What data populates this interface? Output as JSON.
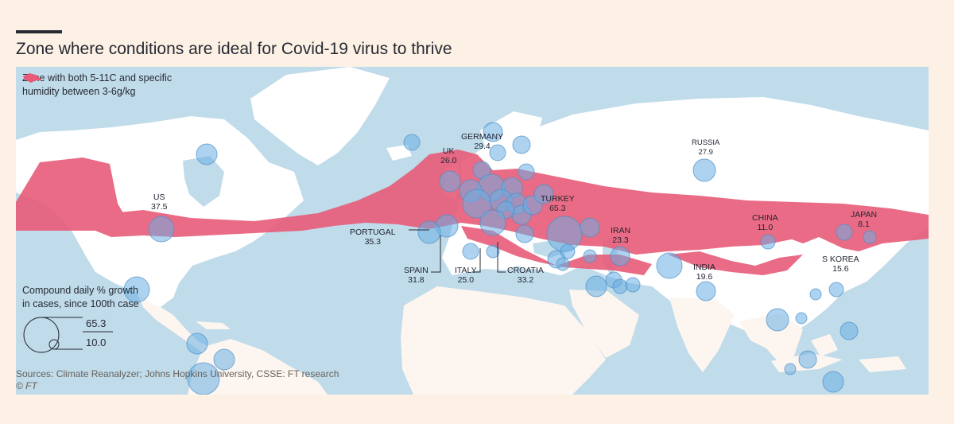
{
  "title": "Zone where conditions are ideal for Covid-19 virus to thrive",
  "legend": {
    "zone_label_line1": "Zone with both 5-11C and specific",
    "zone_label_line2": "humidity between 3-6g/kg",
    "zone_color": "#e85b78",
    "bubble_title_line1": "Compound daily % growth",
    "bubble_title_line2": "in cases, since 100th case",
    "bubble_max": "65.3",
    "bubble_min": "10.0",
    "bubble_color": "#6aaee4"
  },
  "colors": {
    "ocean": "#c0dbea",
    "land_north": "#ffffff",
    "land_south": "#fdf6f0",
    "border": "#d2c8c0"
  },
  "countries": [
    {
      "name": "US",
      "value": "37.5"
    },
    {
      "name": "UK",
      "value": "26.0"
    },
    {
      "name": "GERMANY",
      "value": "29.4"
    },
    {
      "name": "RUSSIA",
      "value": "27.9"
    },
    {
      "name": "TURKEY",
      "value": "65.3"
    },
    {
      "name": "PORTUGAL",
      "value": "35.3"
    },
    {
      "name": "IRAN",
      "value": "23.3"
    },
    {
      "name": "CHINA",
      "value": "11.0"
    },
    {
      "name": "JAPAN",
      "value": "8.1"
    },
    {
      "name": "INDIA",
      "value": "19.6"
    },
    {
      "name": "S KOREA",
      "value": "15.6"
    },
    {
      "name": "SPAIN",
      "value": "31.8"
    },
    {
      "name": "ITALY",
      "value": "25.0"
    },
    {
      "name": "CROATIA",
      "value": "33.2"
    }
  ],
  "sources": "Sources: Climate Reanalyzer; Johns Hopkins University, CSSE: FT research",
  "copyright": "© FT"
}
